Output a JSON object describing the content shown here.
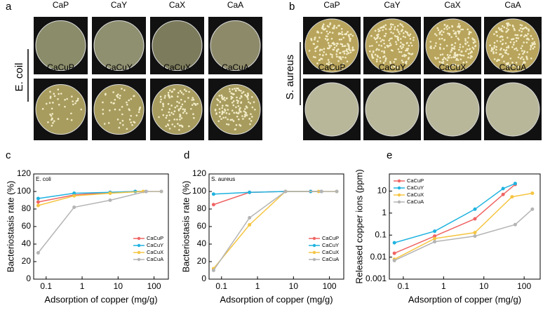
{
  "figure": {
    "panels": [
      {
        "letter": "a",
        "side_label": "E. coil",
        "top_labels": [
          "CaP",
          "CaY",
          "CaX",
          "CaA"
        ],
        "bottom_labels": [
          "CaCuP",
          "CaCuY",
          "CaCuX",
          "CaCuA"
        ]
      },
      {
        "letter": "b",
        "side_label": "S. aureus",
        "top_labels": [
          "CaP",
          "CaY",
          "CaX",
          "CaA"
        ],
        "bottom_labels": [
          "CaCuP",
          "CaCuY",
          "CaCuX",
          "CaCuA"
        ]
      }
    ]
  },
  "chart_data": [
    {
      "type": "line",
      "panel_label": "c",
      "annotation": "E. coli",
      "x_label": "Adsorption of copper (mg/g)",
      "y_label": "Bacteriostasis rate (%)",
      "xscale": "log",
      "xlim": [
        0.045,
        250
      ],
      "xticks": [
        0.1,
        1,
        10,
        100
      ],
      "ylim": [
        0,
        120
      ],
      "yticks": [
        0,
        20,
        40,
        60,
        80,
        100,
        120
      ],
      "legend": "right",
      "series": [
        {
          "name": "CaCuP",
          "color": "#f06464",
          "x": [
            0.06,
            0.6,
            6,
            30,
            60
          ],
          "values": [
            88,
            96,
            99,
            100,
            100
          ]
        },
        {
          "name": "CaCuY",
          "color": "#1fb3e0",
          "x": [
            0.06,
            0.6,
            6,
            30,
            60
          ],
          "values": [
            92,
            98,
            99,
            100,
            100
          ]
        },
        {
          "name": "CaCuX",
          "color": "#f5c542",
          "x": [
            0.06,
            0.6,
            6,
            50,
            160
          ],
          "values": [
            84,
            95,
            98,
            100,
            100
          ]
        },
        {
          "name": "CaCuA",
          "color": "#b4b4b4",
          "x": [
            0.06,
            0.6,
            6,
            60,
            160
          ],
          "values": [
            30,
            82,
            90,
            100,
            100
          ]
        }
      ]
    },
    {
      "type": "line",
      "panel_label": "d",
      "annotation": "S. aureus",
      "x_label": "Adsorption of copper (mg/g)",
      "y_label": "Bacteriostasis rate (%)",
      "xscale": "log",
      "xlim": [
        0.045,
        250
      ],
      "xticks": [
        0.1,
        1,
        10,
        100
      ],
      "ylim": [
        0,
        120
      ],
      "yticks": [
        0,
        20,
        40,
        60,
        80,
        100,
        120
      ],
      "legend": "right",
      "series": [
        {
          "name": "CaCuP",
          "color": "#f06464",
          "x": [
            0.06,
            0.6,
            6,
            30,
            60
          ],
          "values": [
            85,
            99,
            100,
            100,
            100
          ]
        },
        {
          "name": "CaCuY",
          "color": "#1fb3e0",
          "x": [
            0.06,
            0.6,
            6,
            30,
            60
          ],
          "values": [
            97,
            99,
            100,
            100,
            100
          ]
        },
        {
          "name": "CaCuX",
          "color": "#f5c542",
          "x": [
            0.06,
            0.6,
            6,
            50,
            160
          ],
          "values": [
            12,
            62,
            100,
            100,
            100
          ]
        },
        {
          "name": "CaCuA",
          "color": "#b4b4b4",
          "x": [
            0.06,
            0.6,
            6,
            60,
            160
          ],
          "values": [
            10,
            70,
            100,
            100,
            100
          ]
        }
      ]
    },
    {
      "type": "line",
      "panel_label": "e",
      "x_label": "Adsorption of copper (mg/g)",
      "y_label": "Released copper ions (ppm)",
      "xscale": "log",
      "yscale": "log",
      "xlim": [
        0.045,
        250
      ],
      "xticks": [
        0.1,
        1,
        10,
        100
      ],
      "ylim": [
        0.001,
        60
      ],
      "yticks": [
        0.001,
        0.01,
        0.1,
        1,
        10
      ],
      "legend": "upper left",
      "series": [
        {
          "name": "CaCuP",
          "color": "#f06464",
          "x": [
            0.06,
            0.6,
            6,
            30,
            60
          ],
          "values": [
            0.015,
            0.09,
            0.55,
            7,
            20
          ]
        },
        {
          "name": "CaCuY",
          "color": "#1fb3e0",
          "x": [
            0.06,
            0.6,
            6,
            30,
            60
          ],
          "values": [
            0.045,
            0.15,
            1.5,
            13,
            22
          ]
        },
        {
          "name": "CaCuX",
          "color": "#f5c542",
          "x": [
            0.06,
            0.6,
            6,
            50,
            160
          ],
          "values": [
            0.008,
            0.07,
            0.13,
            5.5,
            8
          ]
        },
        {
          "name": "CaCuA",
          "color": "#b4b4b4",
          "x": [
            0.06,
            0.6,
            6,
            60,
            160
          ],
          "values": [
            0.007,
            0.05,
            0.09,
            0.3,
            1.5
          ]
        }
      ]
    }
  ]
}
